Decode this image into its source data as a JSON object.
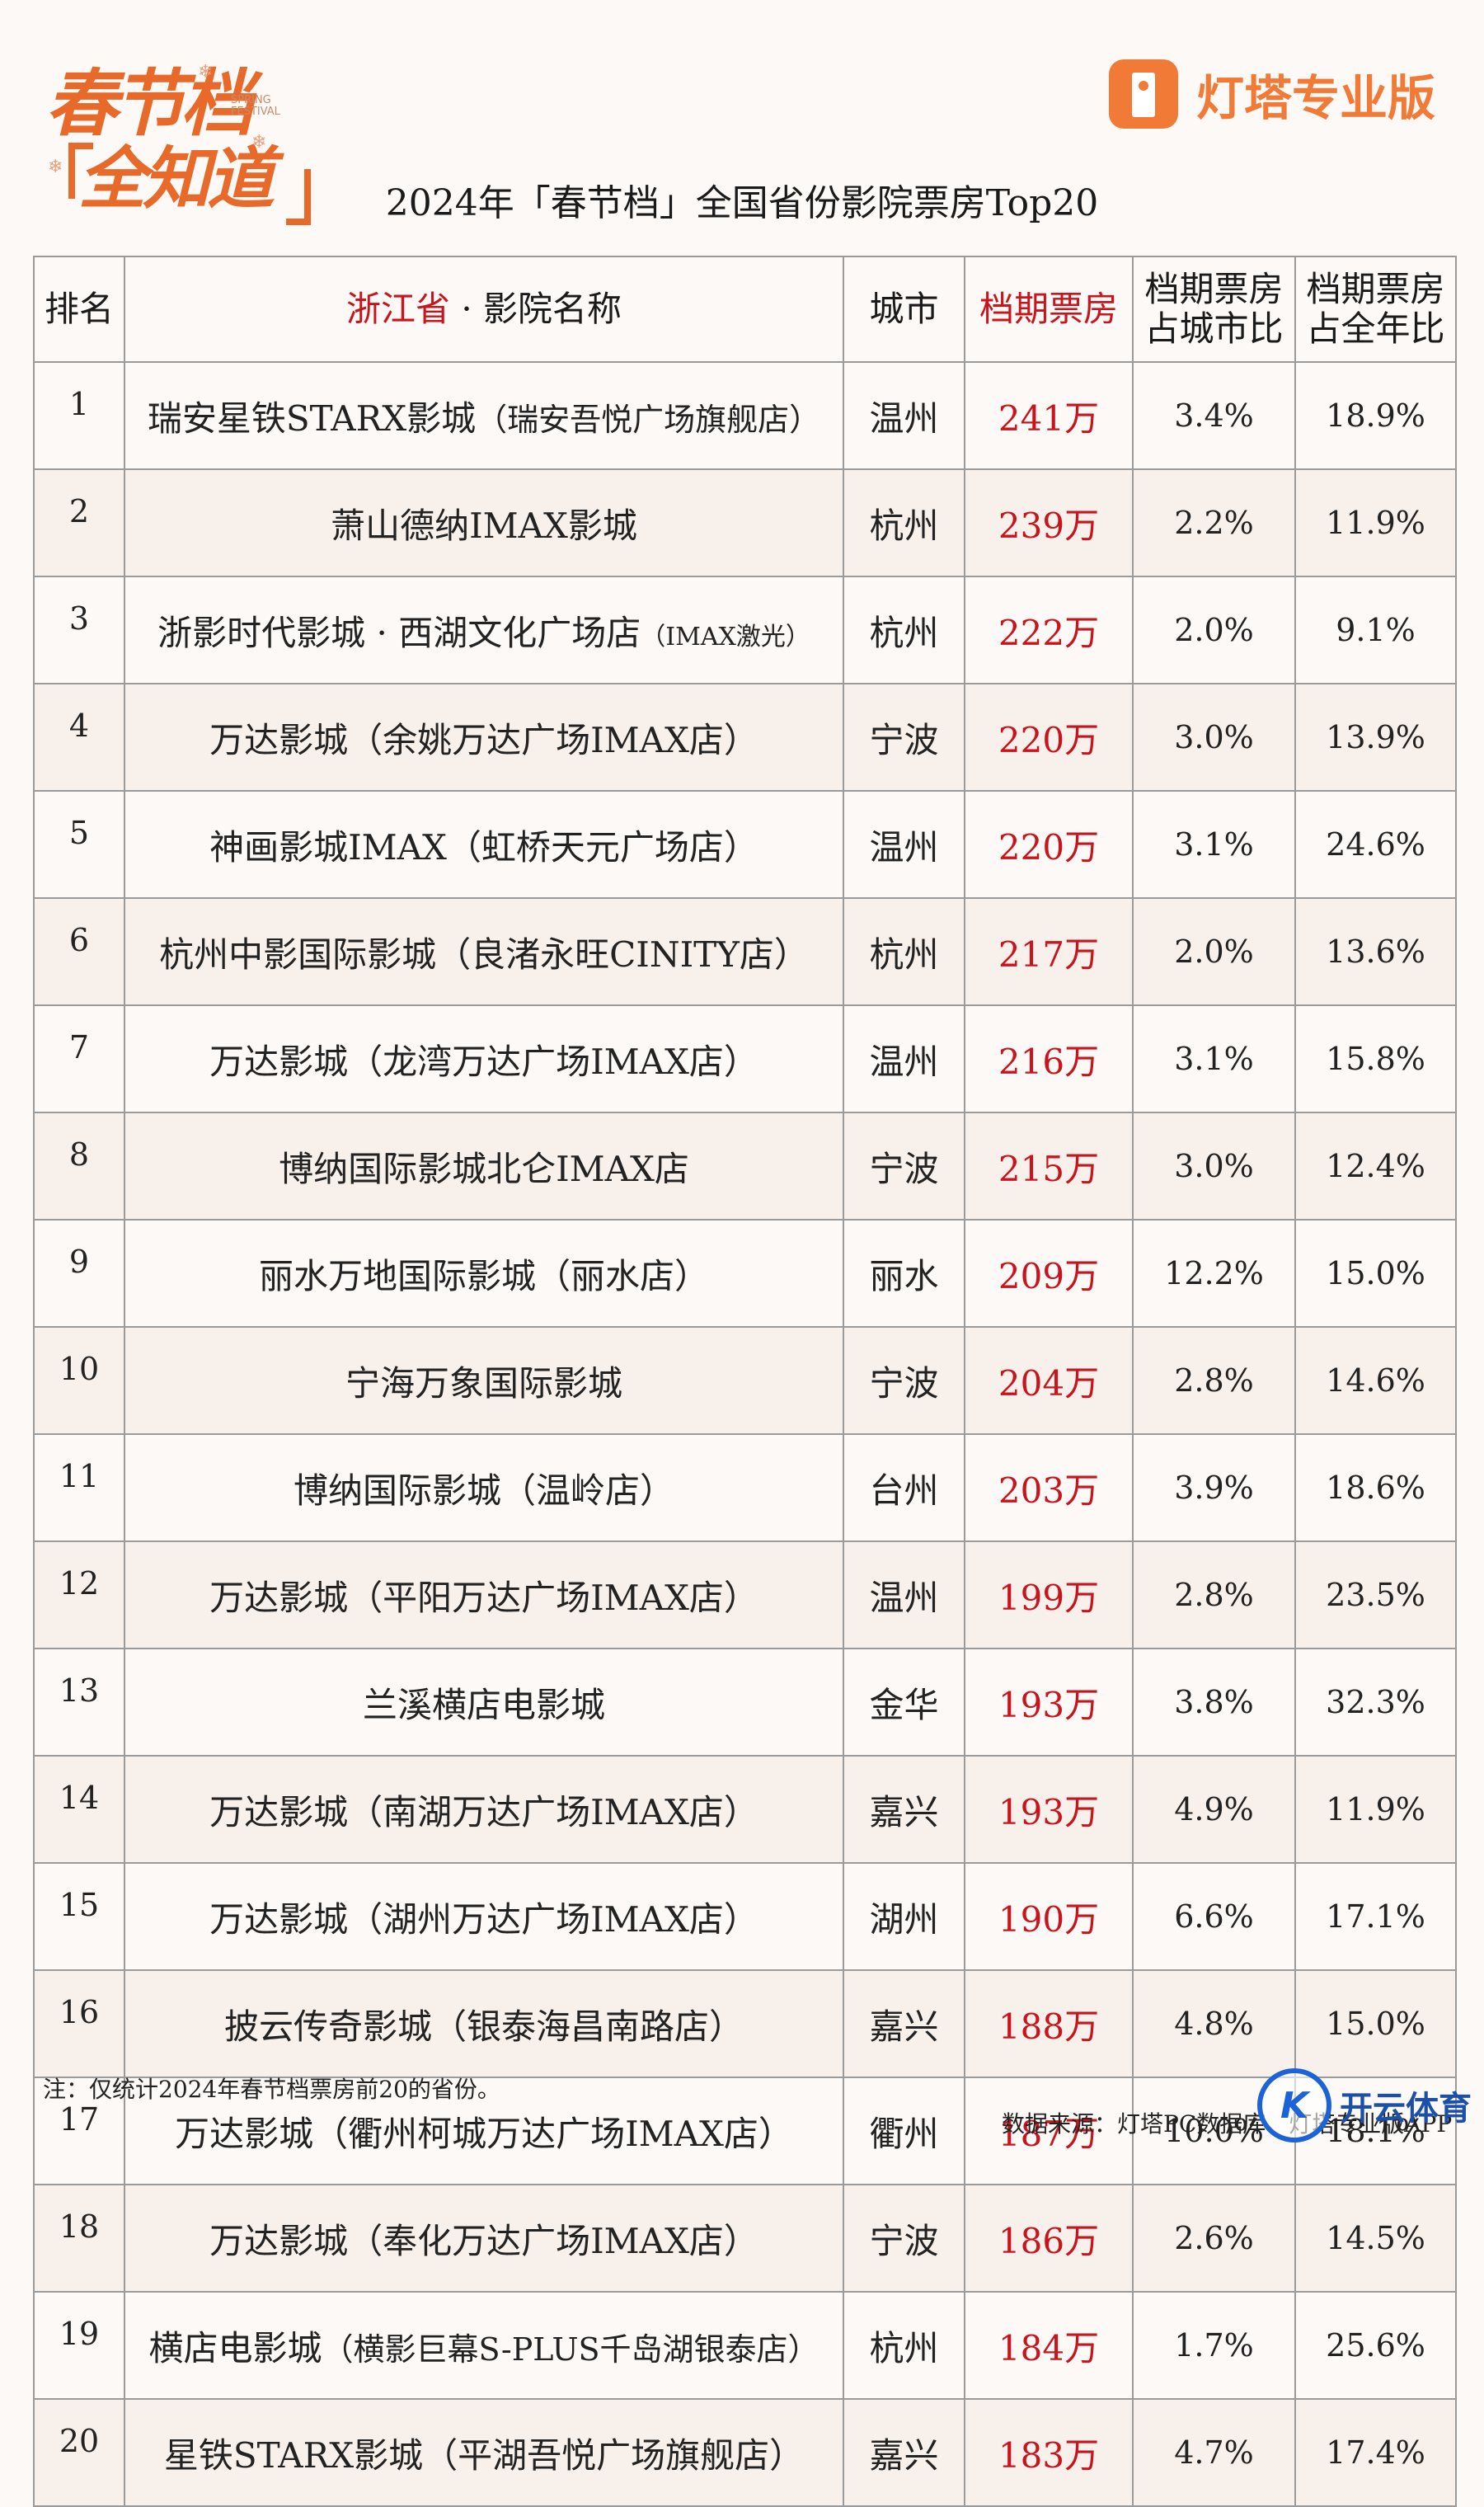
{
  "header": {
    "logo_line1": "春节档",
    "logo_line2": "全知道",
    "logo_small_text": "SPRING FESTIVAL",
    "brand_name": "灯塔专业版",
    "title": "2024年「春节档」全国省份影院票房Top20"
  },
  "table": {
    "columns": {
      "rank": "排名",
      "province": "浙江省",
      "name_suffix": " · 影院名称",
      "city": "城市",
      "box": "档期票房",
      "city_share": "档期票房\n占城市比",
      "year_share": "档期票房\n占全年比"
    },
    "rows": [
      {
        "rank": "1",
        "name": "瑞安星铁STARX影城",
        "paren": "（瑞安吾悦广场旗舰店）",
        "city": "温州",
        "box": "241万",
        "city_share": "3.4%",
        "year_share": "18.9%"
      },
      {
        "rank": "2",
        "name": "萧山德纳IMAX影城",
        "paren": "",
        "city": "杭州",
        "box": "239万",
        "city_share": "2.2%",
        "year_share": "11.9%"
      },
      {
        "rank": "3",
        "name": "浙影时代影城 · 西湖文化广场店",
        "paren": "（IMAX激光）",
        "city": "杭州",
        "box": "222万",
        "city_share": "2.0%",
        "year_share": "9.1%"
      },
      {
        "rank": "4",
        "name": "万达影城（余姚万达广场IMAX店）",
        "paren": "",
        "city": "宁波",
        "box": "220万",
        "city_share": "3.0%",
        "year_share": "13.9%"
      },
      {
        "rank": "5",
        "name": "神画影城IMAX（虹桥天元广场店）",
        "paren": "",
        "city": "温州",
        "box": "220万",
        "city_share": "3.1%",
        "year_share": "24.6%"
      },
      {
        "rank": "6",
        "name": "杭州中影国际影城（良渚永旺CINITY店）",
        "paren": "",
        "city": "杭州",
        "box": "217万",
        "city_share": "2.0%",
        "year_share": "13.6%"
      },
      {
        "rank": "7",
        "name": "万达影城（龙湾万达广场IMAX店）",
        "paren": "",
        "city": "温州",
        "box": "216万",
        "city_share": "3.1%",
        "year_share": "15.8%"
      },
      {
        "rank": "8",
        "name": "博纳国际影城北仑IMAX店",
        "paren": "",
        "city": "宁波",
        "box": "215万",
        "city_share": "3.0%",
        "year_share": "12.4%"
      },
      {
        "rank": "9",
        "name": "丽水万地国际影城（丽水店）",
        "paren": "",
        "city": "丽水",
        "box": "209万",
        "city_share": "12.2%",
        "year_share": "15.0%"
      },
      {
        "rank": "10",
        "name": "宁海万象国际影城",
        "paren": "",
        "city": "宁波",
        "box": "204万",
        "city_share": "2.8%",
        "year_share": "14.6%"
      },
      {
        "rank": "11",
        "name": "博纳国际影城（温岭店）",
        "paren": "",
        "city": "台州",
        "box": "203万",
        "city_share": "3.9%",
        "year_share": "18.6%"
      },
      {
        "rank": "12",
        "name": "万达影城（平阳万达广场IMAX店）",
        "paren": "",
        "city": "温州",
        "box": "199万",
        "city_share": "2.8%",
        "year_share": "23.5%"
      },
      {
        "rank": "13",
        "name": "兰溪横店电影城",
        "paren": "",
        "city": "金华",
        "box": "193万",
        "city_share": "3.8%",
        "year_share": "32.3%"
      },
      {
        "rank": "14",
        "name": "万达影城（南湖万达广场IMAX店）",
        "paren": "",
        "city": "嘉兴",
        "box": "193万",
        "city_share": "4.9%",
        "year_share": "11.9%"
      },
      {
        "rank": "15",
        "name": "万达影城（湖州万达广场IMAX店）",
        "paren": "",
        "city": "湖州",
        "box": "190万",
        "city_share": "6.6%",
        "year_share": "17.1%"
      },
      {
        "rank": "16",
        "name": "披云传奇影城（银泰海昌南路店）",
        "paren": "",
        "city": "嘉兴",
        "box": "188万",
        "city_share": "4.8%",
        "year_share": "15.0%"
      },
      {
        "rank": "17",
        "name": "万达影城（衢州柯城万达广场IMAX店）",
        "paren": "",
        "city": "衢州",
        "box": "187万",
        "city_share": "10.0%",
        "year_share": "18.1%"
      },
      {
        "rank": "18",
        "name": "万达影城（奉化万达广场IMAX店）",
        "paren": "",
        "city": "宁波",
        "box": "186万",
        "city_share": "2.6%",
        "year_share": "14.5%"
      },
      {
        "rank": "19",
        "name": "横店电影城",
        "paren": "（横影巨幕S-PLUS千岛湖银泰店）",
        "city": "杭州",
        "box": "184万",
        "city_share": "1.7%",
        "year_share": "25.6%"
      },
      {
        "rank": "20",
        "name": "星铁STARX影城（平湖吾悦广场旗舰店）",
        "paren": "",
        "city": "嘉兴",
        "box": "183万",
        "city_share": "4.7%",
        "year_share": "17.4%"
      }
    ]
  },
  "footer": {
    "note": "注：仅统计2024年春节档票房前20的省份。",
    "source": "数据来源：灯塔PC数据库、灯塔专业版APP",
    "watermark_text": "开云体育"
  },
  "colors": {
    "accent_red": "#c8141c",
    "brand_orange": "#f07a36",
    "logo_orange": "#e86a2b",
    "watermark_blue": "#1c63d8"
  }
}
